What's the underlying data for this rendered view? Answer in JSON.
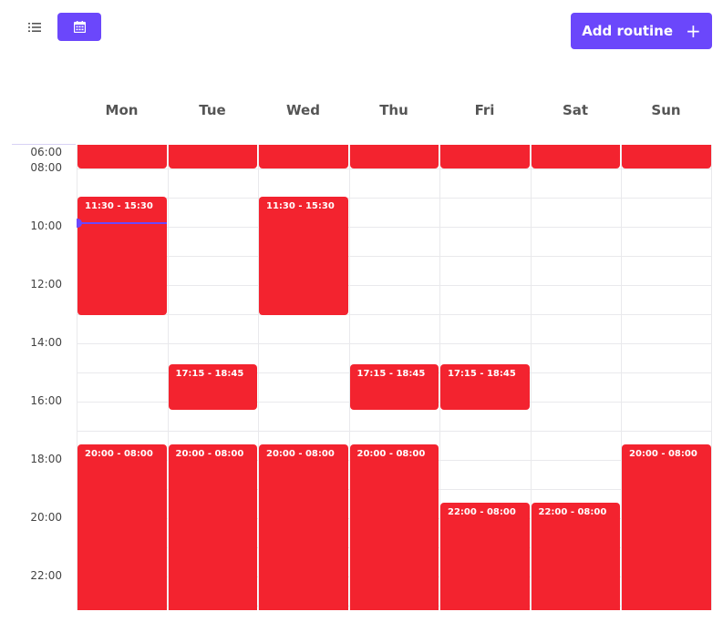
{
  "toolbar": {
    "add_routine_label": "Add routine",
    "add_icon_glyph": "+",
    "list_view_icon": "list-icon",
    "calendar_view_icon": "calendar-icon",
    "active_view": "calendar"
  },
  "days": [
    "Mon",
    "Tue",
    "Wed",
    "Thu",
    "Fri",
    "Sat",
    "Sun"
  ],
  "time_labels": [
    "06:00",
    "08:00",
    "10:00",
    "12:00",
    "14:00",
    "16:00",
    "18:00",
    "20:00",
    "22:00"
  ],
  "current_time_marker": {
    "day": "Mon"
  },
  "events": [
    {
      "day": "Mon",
      "label": ""
    },
    {
      "day": "Tue",
      "label": ""
    },
    {
      "day": "Wed",
      "label": ""
    },
    {
      "day": "Thu",
      "label": ""
    },
    {
      "day": "Fri",
      "label": ""
    },
    {
      "day": "Sat",
      "label": ""
    },
    {
      "day": "Sun",
      "label": ""
    },
    {
      "day": "Mon",
      "label": "11:30 - 15:30"
    },
    {
      "day": "Wed",
      "label": "11:30 - 15:30"
    },
    {
      "day": "Tue",
      "label": "17:15 - 18:45"
    },
    {
      "day": "Thu",
      "label": "17:15 - 18:45"
    },
    {
      "day": "Fri",
      "label": "17:15 - 18:45"
    },
    {
      "day": "Mon",
      "label": "20:00 - 08:00"
    },
    {
      "day": "Tue",
      "label": "20:00 - 08:00"
    },
    {
      "day": "Wed",
      "label": "20:00 - 08:00"
    },
    {
      "day": "Thu",
      "label": "20:00 - 08:00"
    },
    {
      "day": "Sun",
      "label": "20:00 - 08:00"
    },
    {
      "day": "Fri",
      "label": "22:00 - 08:00"
    },
    {
      "day": "Sat",
      "label": "22:00 - 08:00"
    }
  ],
  "colors": {
    "accent": "#6b47fb",
    "event": "#f3232f",
    "grid_line": "#e9e9ec"
  }
}
